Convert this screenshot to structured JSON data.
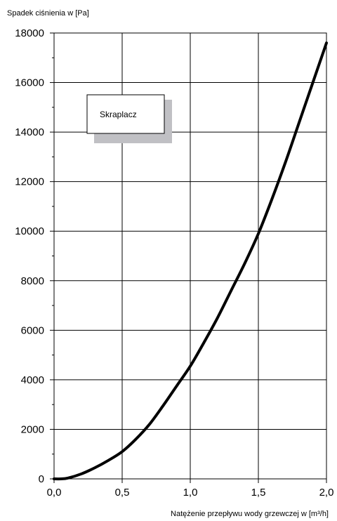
{
  "chart_data": {
    "type": "line",
    "title": "",
    "ylabel": "Spadek ciśnienia w [Pa]",
    "xlabel": "Natężenie przepływu wody grzewczej w [m³/h]",
    "xlim": [
      0,
      2.0
    ],
    "ylim": [
      0,
      18000
    ],
    "x_ticks": [
      {
        "value": 0,
        "label": "0,0"
      },
      {
        "value": 0.5,
        "label": "0,5"
      },
      {
        "value": 1.0,
        "label": "1,0"
      },
      {
        "value": 1.5,
        "label": "1,5"
      },
      {
        "value": 2.0,
        "label": "2,0"
      }
    ],
    "y_ticks": [
      {
        "value": 0,
        "label": "0"
      },
      {
        "value": 2000,
        "label": "2000"
      },
      {
        "value": 4000,
        "label": "4000"
      },
      {
        "value": 6000,
        "label": "6000"
      },
      {
        "value": 8000,
        "label": "8000"
      },
      {
        "value": 10000,
        "label": "10000"
      },
      {
        "value": 12000,
        "label": "12000"
      },
      {
        "value": 14000,
        "label": "14000"
      },
      {
        "value": 16000,
        "label": "16000"
      },
      {
        "value": 18000,
        "label": "18000"
      }
    ],
    "grid": true,
    "legend": {
      "position": "top-left",
      "label": "Skraplacz"
    },
    "series": [
      {
        "name": "Skraplacz",
        "color": "#000000",
        "x": [
          0.0,
          0.05,
          0.1,
          0.2,
          0.3,
          0.4,
          0.5,
          0.6,
          0.7,
          0.8,
          0.9,
          1.0,
          1.1,
          1.2,
          1.3,
          1.4,
          1.5,
          1.6,
          1.7,
          1.8,
          1.9,
          2.0
        ],
        "y": [
          0,
          0,
          30,
          200,
          450,
          750,
          1100,
          1600,
          2200,
          2950,
          3750,
          4550,
          5500,
          6500,
          7600,
          8700,
          9900,
          11300,
          12800,
          14400,
          16000,
          17600
        ]
      }
    ]
  }
}
